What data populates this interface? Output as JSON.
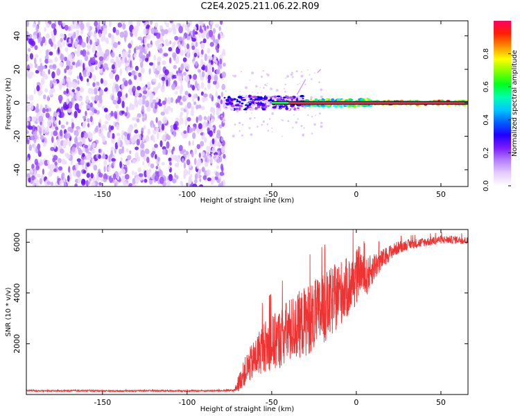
{
  "title": "C2E4.2025.211.06.22.R09",
  "chart_data": [
    {
      "type": "heatmap",
      "xlabel": "Height of straight line (km)",
      "ylabel": "Frequency (Hz)",
      "xlim": [
        -195,
        66
      ],
      "ylim": [
        -50,
        49
      ],
      "xticks": [
        -150,
        -100,
        -50,
        0,
        50
      ],
      "yticks": [
        -40,
        -20,
        0,
        20,
        40
      ],
      "colorbar": {
        "label": "Normalized spectral amplitude",
        "range": [
          0,
          1
        ],
        "ticks": [
          0.0,
          0.2,
          0.4,
          0.6,
          0.8
        ],
        "colors": [
          "#ffffff",
          "#e6ccff",
          "#a64dff",
          "#5a00ff",
          "#0000ff",
          "#00a0ff",
          "#00ffff",
          "#00ff60",
          "#80ff00",
          "#ffff00",
          "#ff8000",
          "#ff0000",
          "#ff0080"
        ]
      },
      "regions": [
        {
          "x_range": [
            -195,
            -78
          ],
          "freq_range": [
            -50,
            49
          ],
          "amplitude": 0.15,
          "description": "broadband noise"
        },
        {
          "x_range": [
            -78,
            -30
          ],
          "freq_range": [
            -4,
            4
          ],
          "amplitude": 0.4
        },
        {
          "x_range": [
            -30,
            10
          ],
          "freq_range": [
            -2,
            2
          ],
          "amplitude": 0.75
        },
        {
          "x_range": [
            10,
            66
          ],
          "freq_range": [
            -1,
            1
          ],
          "amplitude": 0.95
        }
      ]
    },
    {
      "type": "line",
      "xlabel": "Height of straight line (km)",
      "ylabel": "SNR (10 * v/v)",
      "xlim": [
        -195,
        66
      ],
      "ylim": [
        0,
        6500
      ],
      "xticks": [
        -150,
        -100,
        -50,
        0,
        50
      ],
      "yticks": [
        2000,
        4000,
        6000
      ],
      "color": "#ee3333",
      "series": [
        {
          "x": [
            -195,
            -180,
            -160,
            -140,
            -120,
            -100,
            -80,
            -72,
            -70,
            -65,
            -60,
            -55,
            -50,
            -45,
            -40,
            -35,
            -30,
            -25,
            -20,
            -15,
            -10,
            -5,
            0,
            2,
            5,
            10,
            15,
            20,
            25,
            30,
            40,
            50,
            60,
            66
          ],
          "y": [
            150,
            140,
            150,
            140,
            150,
            140,
            150,
            160,
            400,
            1000,
            1400,
            1900,
            2000,
            2200,
            2500,
            2700,
            2900,
            3100,
            3300,
            3600,
            4000,
            4200,
            4600,
            5000,
            4500,
            5000,
            5300,
            5600,
            5800,
            5900,
            6000,
            6100,
            6100,
            6050
          ],
          "noise": [
            30,
            30,
            30,
            30,
            30,
            30,
            30,
            50,
            300,
            600,
            800,
            1000,
            1100,
            1200,
            1300,
            1300,
            1400,
            1400,
            1400,
            1400,
            1300,
            1200,
            1100,
            900,
            800,
            600,
            400,
            300,
            250,
            200,
            180,
            160,
            150,
            150
          ]
        }
      ]
    }
  ]
}
